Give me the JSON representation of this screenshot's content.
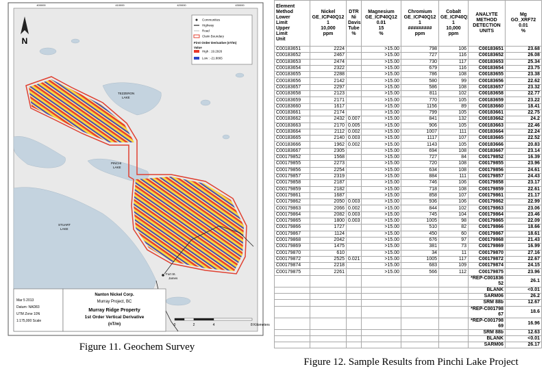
{
  "figure_11": {
    "caption": "Figure 11. Geochem Survey",
    "north": "N",
    "coordinates_top": [
      "400000",
      "410000",
      "420000",
      "430000"
    ],
    "legend": {
      "items": [
        "Communities",
        "Highway",
        "Road",
        "Claim Boundary"
      ],
      "title": "First Order Derivative (nT/m)",
      "value_label": "Value",
      "high": "High : 19.2926",
      "low": "Low : -21.8865"
    },
    "places": {
      "tezzeron": [
        "TEZZERON",
        "LAKE"
      ],
      "pinchi": [
        "PINCHI",
        "LAKE"
      ],
      "stuart": [
        "STUART",
        "LAKE"
      ],
      "fort": [
        "Fort St.",
        "James"
      ]
    },
    "title_block": {
      "company": "Nanton Nickel Corp.",
      "project": "Murray Project, BC",
      "property": "Murray Ridge Property",
      "map_type": "1st Order Vertical Derivative",
      "unit": "(nT/m)"
    },
    "info": [
      "Mar 5 2013",
      "Datum: NAD83",
      "UTM Zone 10N",
      "1:175,000 Scale"
    ],
    "scale": [
      "0",
      "2",
      "4",
      "8 Kilometers"
    ]
  },
  "figure_12": {
    "caption": "Figure 12. Sample Results from Pinchi Lake Project",
    "table": {
      "header": [
        [
          "Element",
          "Method",
          "Lower",
          "Limit",
          "Upper",
          "Limit",
          "Unit"
        ],
        [
          "Nickel",
          "GE_ICP40Q12",
          "1",
          "10,000",
          "ppm"
        ],
        [
          "DTR",
          "Ni",
          "Davis",
          "Tube",
          "%"
        ],
        [
          "Magnesium",
          "GE_ICP40Q12",
          "0.01",
          "15",
          "%"
        ],
        [
          "Chromium",
          "GE_ICP40Q12",
          "1",
          "#########",
          "ppm"
        ],
        [
          "Cobalt",
          "GE_ICP40Q12",
          "1",
          "10,000",
          "ppm"
        ],
        [
          "ANALYTE",
          "METHOD",
          "DETECTION",
          "UNITS"
        ],
        [
          "Mg",
          "GO_XRF72",
          "0.01",
          "%"
        ]
      ],
      "rows": [
        [
          "C00183651",
          2224,
          null,
          ">15.00",
          798,
          106,
          "C00183651",
          23.68
        ],
        [
          "C00183652",
          2467,
          null,
          ">15.00",
          727,
          116,
          "C00183652",
          26.08
        ],
        [
          "C00183653",
          2474,
          null,
          ">15.00",
          730,
          117,
          "C00183653",
          25.34
        ],
        [
          "C00183654",
          2322,
          null,
          ">15.00",
          679,
          116,
          "C00183654",
          23.75
        ],
        [
          "C00183655",
          2288,
          null,
          ">15.00",
          786,
          108,
          "C00183655",
          23.38
        ],
        [
          "C00183656",
          2142,
          null,
          ">15.00",
          580,
          99,
          "C00183656",
          22.62
        ],
        [
          "C00183657",
          2297,
          null,
          ">15.00",
          586,
          108,
          "C00183657",
          23.32
        ],
        [
          "C00183658",
          2123,
          null,
          ">15.00",
          811,
          102,
          "C00183658",
          22.77
        ],
        [
          "C00183659",
          2171,
          null,
          ">15.00",
          770,
          105,
          "C00183659",
          23.22
        ],
        [
          "C00183660",
          1617,
          null,
          ">15.00",
          1156,
          89,
          "C00183660",
          18.41
        ],
        [
          "C00183661",
          2174,
          null,
          ">15.00",
          799,
          105,
          "C00183661",
          22.75
        ],
        [
          "C00183662",
          2432,
          0.007,
          ">15.00",
          841,
          132,
          "C00183662",
          24.2
        ],
        [
          "C00183663",
          2170,
          0.005,
          ">15.00",
          906,
          105,
          "C00183663",
          22.46
        ],
        [
          "C00183664",
          2112,
          0.002,
          ">15.00",
          1007,
          111,
          "C00183664",
          22.24
        ],
        [
          "C00183665",
          2140,
          0.003,
          ">15.00",
          1117,
          107,
          "C00183665",
          22.52
        ],
        [
          "C00183666",
          1962,
          0.002,
          ">15.00",
          1143,
          105,
          "C00183666",
          20.83
        ],
        [
          "C00183667",
          2305,
          null,
          ">15.00",
          694,
          108,
          "C00183667",
          23.14
        ],
        [
          "C00179852",
          1568,
          null,
          ">15.00",
          727,
          84,
          "C00179852",
          16.39
        ],
        [
          "C00179855",
          2273,
          null,
          ">15.00",
          720,
          108,
          "C00179855",
          23.96
        ],
        [
          "C00179856",
          2254,
          null,
          ">15.00",
          634,
          108,
          "C00179856",
          24.61
        ],
        [
          "C00179857",
          2319,
          null,
          ">15.00",
          884,
          111,
          "C00179857",
          24.43
        ],
        [
          "C00179858",
          2187,
          null,
          ">15.00",
          746,
          106,
          "C00179858",
          23.17
        ],
        [
          "C00179859",
          2182,
          null,
          ">15.00",
          718,
          108,
          "C00179859",
          22.61
        ],
        [
          "C00179861",
          1687,
          null,
          ">15.00",
          858,
          107,
          "C00179861",
          21.17
        ],
        [
          "C00179862",
          2050,
          0.003,
          ">15.00",
          936,
          106,
          "C00179862",
          22.99
        ],
        [
          "C00179863",
          2066,
          0.002,
          ">15.00",
          844,
          102,
          "C00179863",
          23.06
        ],
        [
          "C00179864",
          2082,
          0.003,
          ">15.00",
          745,
          104,
          "C00179864",
          23.46
        ],
        [
          "C00179865",
          1800,
          0.003,
          ">15.00",
          1005,
          98,
          "C00179865",
          22.09
        ],
        [
          "C00179866",
          1727,
          null,
          ">15.00",
          510,
          82,
          "C00179866",
          18.66
        ],
        [
          "C00179867",
          1124,
          null,
          ">15.00",
          450,
          60,
          "C00179867",
          18.61
        ],
        [
          "C00179868",
          2042,
          null,
          ">15.00",
          676,
          97,
          "C00179868",
          21.43
        ],
        [
          "C00179869",
          1475,
          null,
          ">15.00",
          381,
          73,
          "C00179869",
          16.99
        ],
        [
          "C00179870",
          610,
          null,
          ">15.00",
          34,
          11,
          "C00179870",
          27.16
        ],
        [
          "C00179872",
          2525,
          0.021,
          ">15.00",
          1005,
          117,
          "C00179872",
          22.67
        ],
        [
          "C00179874",
          2218,
          null,
          ">15.00",
          683,
          109,
          "C00179874",
          24.15
        ],
        [
          "C00179875",
          2261,
          null,
          ">15.00",
          566,
          112,
          "C00179875",
          23.96
        ]
      ],
      "qc_rows": [
        [
          "*REP-C00183652",
          26.1
        ],
        [
          "BLANK",
          "<0.01"
        ],
        [
          "SARM06",
          26.2
        ],
        [
          "SRM 88b",
          12.67
        ],
        [
          "*REP-C00179867",
          18.6
        ],
        [
          "*REP-C00179869",
          16.96
        ],
        [
          "SRM 88b",
          12.63
        ],
        [
          "BLANK",
          "<0.01"
        ],
        [
          "SARM06",
          26.17
        ]
      ]
    }
  }
}
